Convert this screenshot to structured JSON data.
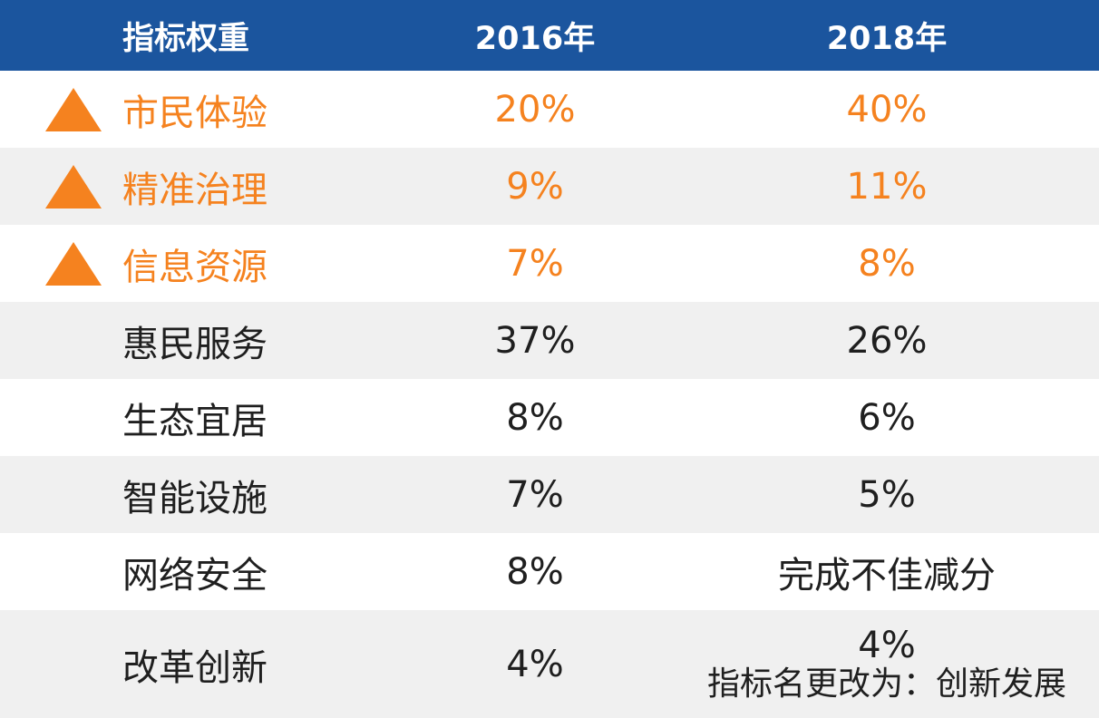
{
  "chart_data": {
    "type": "table",
    "title": "指标权重",
    "columns": {
      "indicator": "指标权重",
      "y2016": "2016年",
      "y2018": "2018年"
    },
    "rows": [
      {
        "label": "市民体验",
        "y2016": "20%",
        "y2018": "40%",
        "trend_up": true,
        "highlighted": true
      },
      {
        "label": "精准治理",
        "y2016": "9%",
        "y2018": "11%",
        "trend_up": true,
        "highlighted": true
      },
      {
        "label": "信息资源",
        "y2016": "7%",
        "y2018": "8%",
        "trend_up": true,
        "highlighted": true
      },
      {
        "label": "惠民服务",
        "y2016": "37%",
        "y2018": "26%",
        "trend_up": false,
        "highlighted": false
      },
      {
        "label": "生态宜居",
        "y2016": "8%",
        "y2018": "6%",
        "trend_up": false,
        "highlighted": false
      },
      {
        "label": "智能设施",
        "y2016": "7%",
        "y2018": "5%",
        "trend_up": false,
        "highlighted": false
      },
      {
        "label": "网络安全",
        "y2016": "8%",
        "y2018": "完成不佳减分",
        "trend_up": false,
        "highlighted": false
      },
      {
        "label": "改革创新",
        "y2016": "4%",
        "y2018": "4%",
        "y2018_note": "指标名更改为：创新发展",
        "trend_up": false,
        "highlighted": false
      }
    ],
    "legend_position": "none",
    "grid": false
  },
  "colors": {
    "header_bg": "#1B559E",
    "header_text": "#FFFFFF",
    "accent_orange": "#F5821F",
    "row_alt_bg": "#F0F0F0",
    "row_bg": "#FFFFFF",
    "body_text": "#1F1F1F"
  }
}
